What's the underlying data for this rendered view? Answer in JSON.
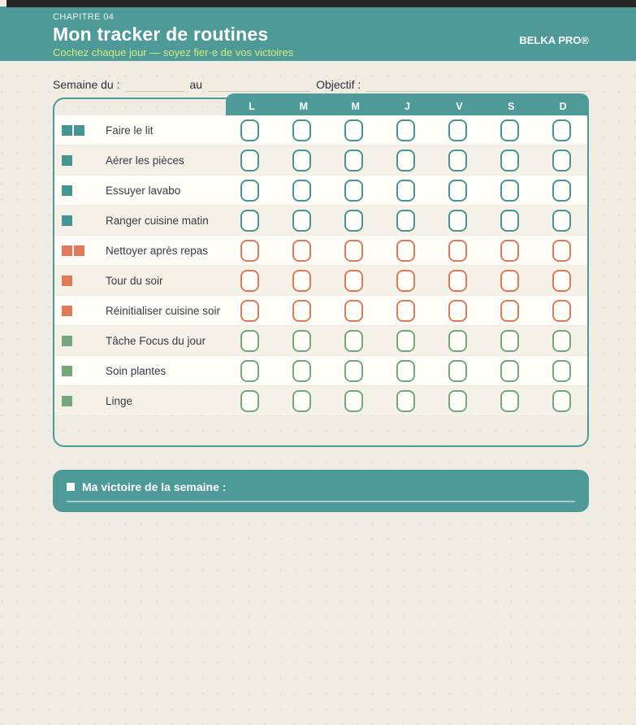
{
  "page": {
    "bg_color": "#f1ece2",
    "dot_color": "#dcdbe9",
    "topbar_color": "#262626"
  },
  "header": {
    "chapter": "CHAPITRE 04",
    "title": "Mon tracker de routines",
    "subtitle": "Cochez chaque jour — soyez fier·e de vos victoires",
    "brand": "BELKA PRO®",
    "bg_color": "#4d9a99",
    "subtitle_color": "#d8e97a"
  },
  "week_form": {
    "label_week": "Semaine du :",
    "label_to": "au",
    "label_goal": "Objectif :",
    "week_start_value": "",
    "week_end_value": "",
    "goal_value": ""
  },
  "tracker": {
    "days": [
      "L",
      "M",
      "M",
      "J",
      "V",
      "S",
      "D"
    ],
    "colors": {
      "teal": "#459594",
      "orange": "#e0795a",
      "green": "#72a87c"
    },
    "rows": [
      {
        "label": "Faire le lit",
        "color": "teal",
        "squares": 2
      },
      {
        "label": "Aérer les pièces",
        "color": "teal",
        "squares": 1
      },
      {
        "label": "Essuyer lavabo",
        "color": "teal",
        "squares": 1
      },
      {
        "label": "Ranger cuisine matin",
        "color": "teal",
        "squares": 1
      },
      {
        "label": "Nettoyer après repas",
        "color": "orange",
        "squares": 2
      },
      {
        "label": "Tour du soir",
        "color": "orange",
        "squares": 1
      },
      {
        "label": "Réinitialiser cuisine soir",
        "color": "orange",
        "squares": 1
      },
      {
        "label": "Tâche Focus du jour",
        "color": "green",
        "squares": 1
      },
      {
        "label": "Soin plantes",
        "color": "green",
        "squares": 1
      },
      {
        "label": "Linge",
        "color": "green",
        "squares": 1
      }
    ],
    "checkbox_state": "unchecked"
  },
  "victory": {
    "bullet_icon": "square-bullet",
    "label": "Ma victoire de la semaine :",
    "value": ""
  }
}
